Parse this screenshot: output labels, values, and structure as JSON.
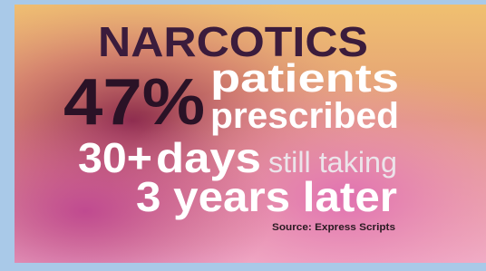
{
  "headline": "NARCOTICS",
  "lines": [
    {
      "figure": "47%",
      "words": [
        "patients",
        "prescribed"
      ]
    },
    {
      "figure": "30+",
      "unit": "days",
      "rest": "still taking"
    },
    {
      "text": "3 years later"
    }
  ],
  "source": "Source: Express Scripts"
}
